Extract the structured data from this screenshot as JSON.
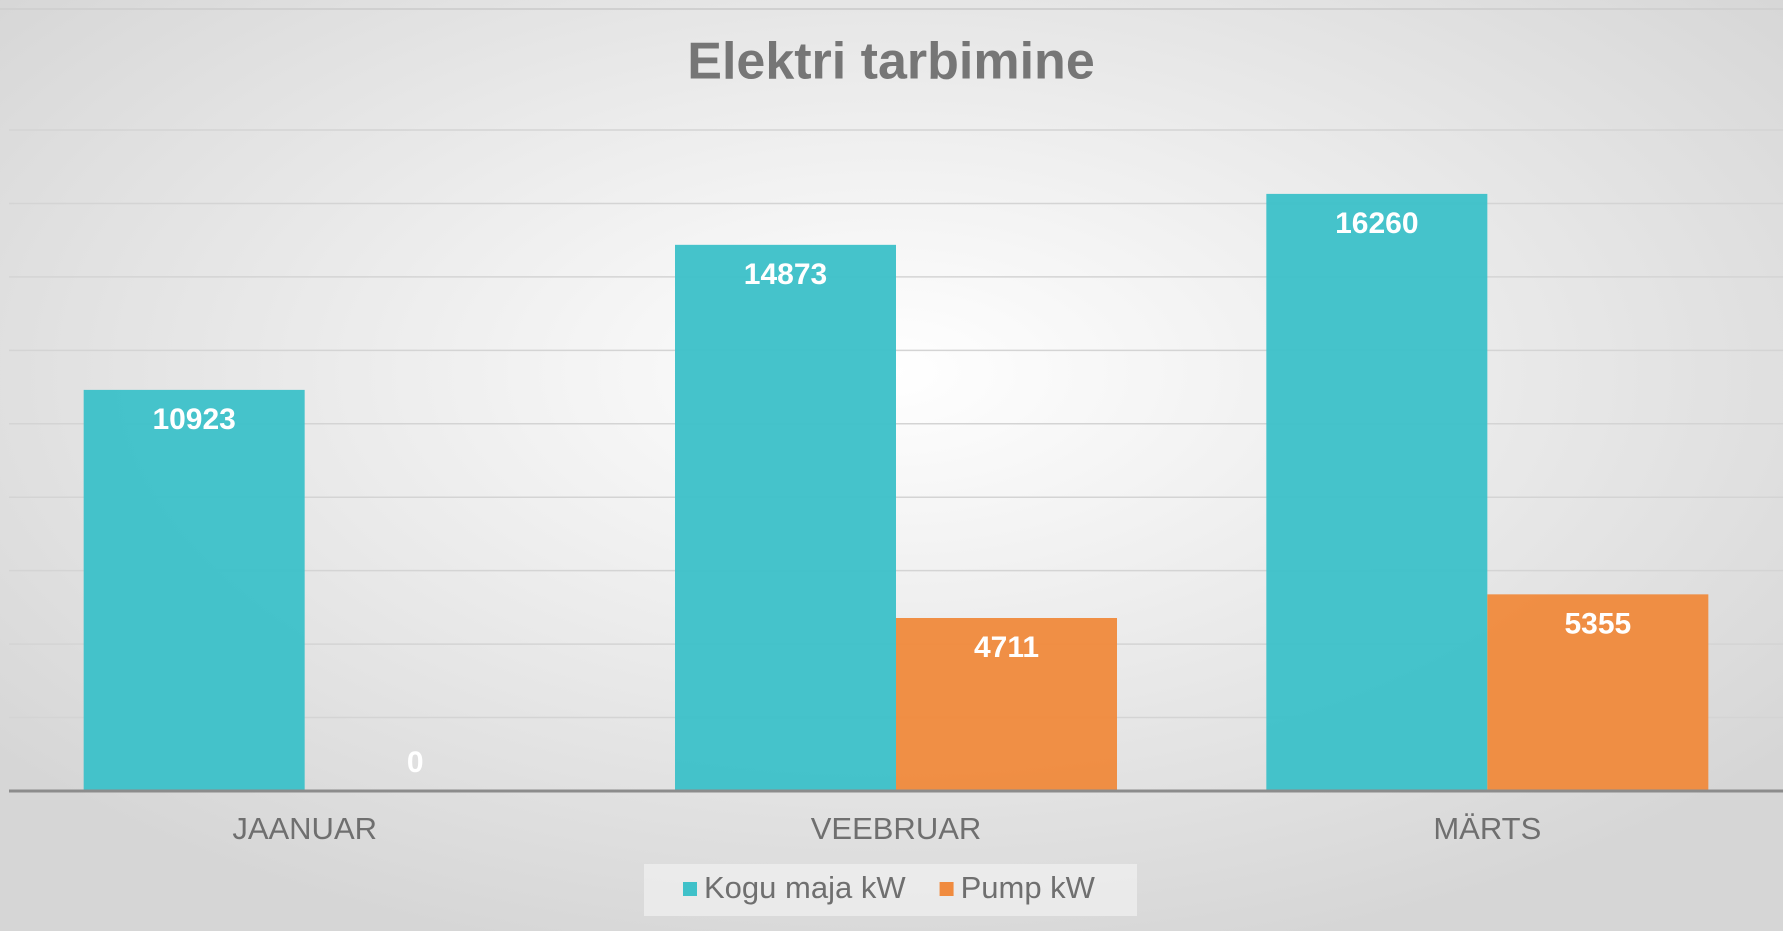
{
  "chart_data": {
    "type": "bar",
    "title": "Elektri tarbimine",
    "categories": [
      "JAANUAR",
      "VEEBRUAR",
      "MÄRTS"
    ],
    "series": [
      {
        "name": "Kogu maja kW",
        "color": "#3fc1c9",
        "values": [
          10923,
          14873,
          16260
        ]
      },
      {
        "name": "Pump kW",
        "color": "#f08b3f",
        "values": [
          0,
          4711,
          5355
        ]
      }
    ],
    "ylim": [
      0,
      18000
    ],
    "yticks": [
      0,
      2000,
      4000,
      6000,
      8000,
      10000,
      12000,
      14000,
      16000,
      18000
    ],
    "grid": true,
    "legend": "bottom"
  }
}
